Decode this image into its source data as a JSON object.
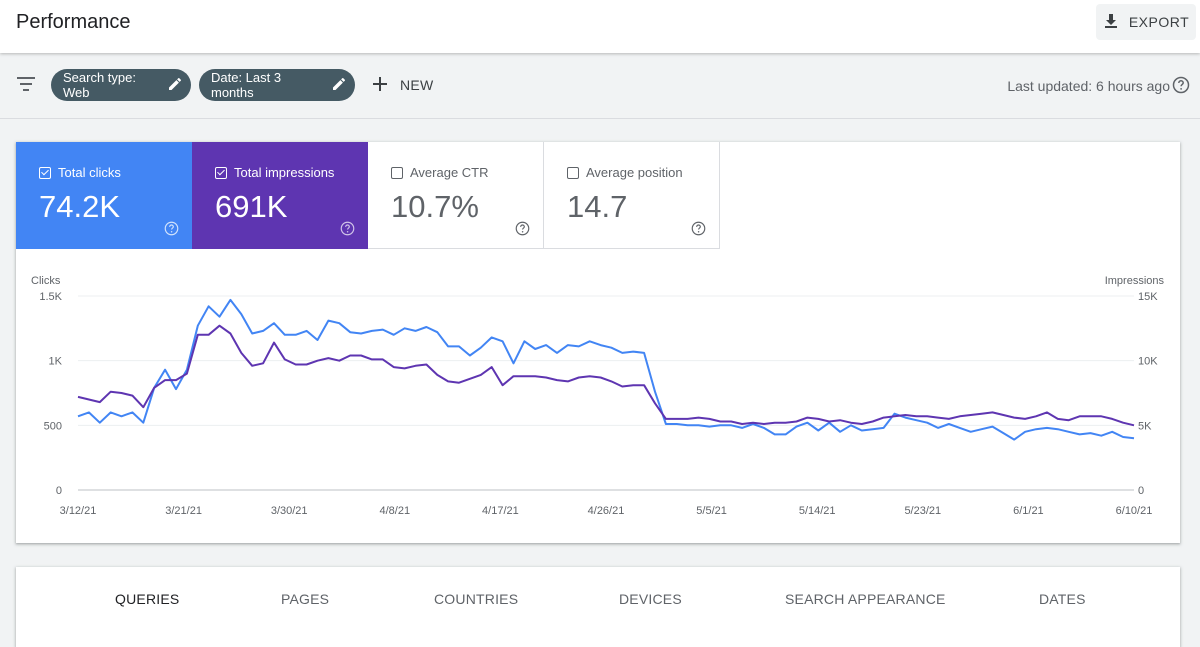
{
  "header": {
    "title": "Performance",
    "export_label": "EXPORT"
  },
  "filters": {
    "chips": [
      {
        "label": "Search type: Web"
      },
      {
        "label": "Date: Last 3 months"
      }
    ],
    "new_label": "NEW",
    "last_updated": "Last updated: 6 hours ago"
  },
  "metrics": [
    {
      "label": "Total clicks",
      "value": "74.2K",
      "checked": true,
      "color": "#4285f4"
    },
    {
      "label": "Total impressions",
      "value": "691K",
      "checked": true,
      "color": "#5e35b1"
    },
    {
      "label": "Average CTR",
      "value": "10.7%",
      "checked": false
    },
    {
      "label": "Average position",
      "value": "14.7",
      "checked": false
    }
  ],
  "tabs": [
    "QUERIES",
    "PAGES",
    "COUNTRIES",
    "DEVICES",
    "SEARCH APPEARANCE",
    "DATES"
  ],
  "active_tab": "QUERIES",
  "chart_data": {
    "type": "line",
    "ylabel_left": "Clicks",
    "ylabel_right": "Impressions",
    "y_left_ticks": [
      "0",
      "500",
      "1K",
      "1.5K"
    ],
    "y_right_ticks": [
      "0",
      "5K",
      "10K",
      "15K"
    ],
    "ylim_left": [
      0,
      1500
    ],
    "ylim_right": [
      0,
      15000
    ],
    "x_ticks": [
      "3/12/21",
      "3/21/21",
      "3/30/21",
      "4/8/21",
      "4/17/21",
      "4/26/21",
      "5/5/21",
      "5/14/21",
      "5/23/21",
      "6/1/21",
      "6/10/21"
    ],
    "x_range": [
      "3/12/21",
      "6/10/21"
    ],
    "grid": true,
    "series": [
      {
        "name": "Total clicks",
        "axis": "left",
        "color": "#4285f4",
        "values": [
          570,
          600,
          520,
          600,
          570,
          600,
          520,
          790,
          930,
          780,
          930,
          1270,
          1420,
          1340,
          1470,
          1360,
          1210,
          1230,
          1290,
          1200,
          1200,
          1230,
          1160,
          1310,
          1290,
          1220,
          1210,
          1230,
          1240,
          1200,
          1250,
          1230,
          1260,
          1220,
          1110,
          1110,
          1040,
          1100,
          1180,
          1150,
          980,
          1150,
          1090,
          1120,
          1060,
          1120,
          1110,
          1150,
          1120,
          1100,
          1060,
          1070,
          1060,
          760,
          510,
          510,
          500,
          500,
          490,
          500,
          500,
          480,
          510,
          480,
          430,
          430,
          490,
          520,
          460,
          520,
          450,
          500,
          460,
          470,
          480,
          590,
          560,
          540,
          520,
          480,
          510,
          480,
          450,
          470,
          490,
          440,
          390,
          450,
          470,
          480,
          470,
          450,
          430,
          440,
          420,
          450,
          410,
          400
        ]
      },
      {
        "name": "Total impressions",
        "axis": "right",
        "color": "#5e35b1",
        "values": [
          7200,
          7000,
          6800,
          7600,
          7500,
          7300,
          6400,
          7900,
          8500,
          8500,
          9000,
          12000,
          12000,
          12700,
          12100,
          10600,
          9600,
          9800,
          11400,
          10100,
          9700,
          9700,
          10000,
          10200,
          10000,
          10400,
          10400,
          10100,
          10100,
          9500,
          9400,
          9600,
          9700,
          8900,
          8400,
          8300,
          8600,
          8900,
          9500,
          8100,
          8800,
          8800,
          8800,
          8700,
          8500,
          8400,
          8700,
          8800,
          8700,
          8400,
          8000,
          8100,
          8100,
          6700,
          5500,
          5500,
          5500,
          5600,
          5500,
          5300,
          5300,
          5100,
          5200,
          5100,
          5200,
          5200,
          5300,
          5600,
          5500,
          5300,
          5400,
          5200,
          5100,
          5300,
          5600,
          5700,
          5800,
          5700,
          5700,
          5600,
          5500,
          5700,
          5800,
          5900,
          6000,
          5800,
          5600,
          5500,
          5700,
          6000,
          5500,
          5400,
          5700,
          5700,
          5700,
          5500,
          5200,
          5000
        ]
      }
    ]
  }
}
